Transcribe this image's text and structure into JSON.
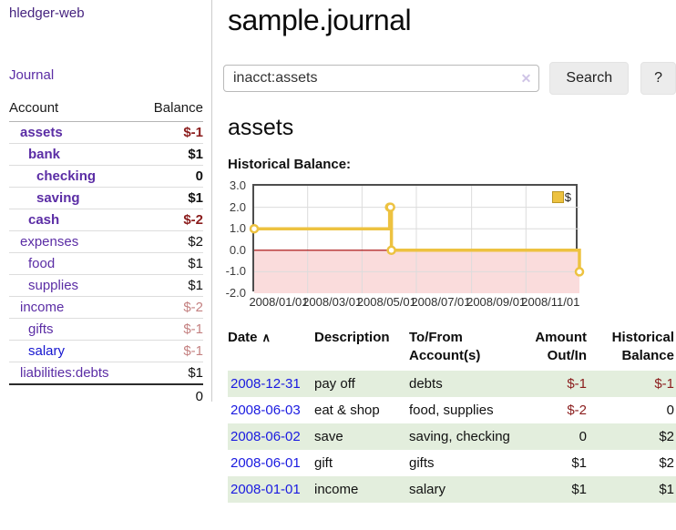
{
  "palette": {
    "link_purple": "#5b2da5",
    "link_purple_dark": "#46237f",
    "link_blue": "#1515cf",
    "date_blue": "#1a1ae0",
    "negative": "#8b1d1d",
    "negative_faint": "#c48181",
    "row_stripe": "#e3eedd",
    "chart_line": "#edc240",
    "chart_negative_fill": "#fadcdc",
    "chart_zero_line": "#a40000",
    "chart_grid": "#dcdcdc"
  },
  "sidebar": {
    "app_title": "hledger-web",
    "journal_link": "Journal",
    "accounts": {
      "account_header": "Account",
      "balance_header": "Balance",
      "rows": [
        {
          "name": "assets",
          "balance": "$-1",
          "level": 1,
          "bold": true,
          "name_color": "purple",
          "balance_color": "negative"
        },
        {
          "name": "bank",
          "balance": "$1",
          "level": 2,
          "bold": true,
          "name_color": "purple",
          "balance_color": "normal"
        },
        {
          "name": "checking",
          "balance": "0",
          "level": 3,
          "bold": true,
          "name_color": "purple",
          "balance_color": "normal"
        },
        {
          "name": "saving",
          "balance": "$1",
          "level": 3,
          "bold": true,
          "name_color": "purple",
          "balance_color": "normal"
        },
        {
          "name": "cash",
          "balance": "$-2",
          "level": 2,
          "bold": true,
          "name_color": "purple",
          "balance_color": "negative"
        },
        {
          "name": "expenses",
          "balance": "$2",
          "level": 1,
          "bold": false,
          "name_color": "purple",
          "balance_color": "normal"
        },
        {
          "name": "food",
          "balance": "$1",
          "level": 2,
          "bold": false,
          "name_color": "purple",
          "balance_color": "normal"
        },
        {
          "name": "supplies",
          "balance": "$1",
          "level": 2,
          "bold": false,
          "name_color": "purple",
          "balance_color": "normal"
        },
        {
          "name": "income",
          "balance": "$-2",
          "level": 1,
          "bold": false,
          "name_color": "purple",
          "balance_color": "negative_faint"
        },
        {
          "name": "gifts",
          "balance": "$-1",
          "level": 2,
          "bold": false,
          "name_color": "purple",
          "balance_color": "negative_faint"
        },
        {
          "name": "salary",
          "balance": "$-1",
          "level": 2,
          "bold": false,
          "name_color": "blue",
          "balance_color": "negative_faint"
        },
        {
          "name": "liabilities:debts",
          "balance": "$1",
          "level": 1,
          "bold": false,
          "name_color": "purple",
          "balance_color": "normal"
        }
      ],
      "total": "0"
    }
  },
  "main": {
    "title": "sample.journal",
    "search": {
      "value": "inacct:assets",
      "clear_icon": "✕",
      "search_button": "Search",
      "help_button": "?"
    },
    "account_heading": "assets",
    "section_label": "Historical Balance:"
  },
  "chart_data": {
    "type": "line",
    "step": true,
    "title": "Historical Balance",
    "legend": [
      {
        "name": "$",
        "color": "#edc240"
      }
    ],
    "legend_position": "top-right",
    "series": [
      {
        "name": "$",
        "points": [
          [
            "2008-01-01",
            1
          ],
          [
            "2008-06-01",
            2
          ],
          [
            "2008-06-02",
            2
          ],
          [
            "2008-06-03",
            0
          ],
          [
            "2008-12-31",
            -1
          ]
        ]
      }
    ],
    "x_ticks": [
      "2008/01/01",
      "2008/03/01",
      "2008/05/01",
      "2008/07/01",
      "2008/09/01",
      "2008/11/01"
    ],
    "y_ticks": [
      "3.0",
      "2.0",
      "1.0",
      "0.0",
      "-1.0",
      "-2.0"
    ],
    "ylim": [
      -2,
      3
    ],
    "x_range_days": 365,
    "grid": true,
    "negative_region_shaded": true
  },
  "register": {
    "headers": {
      "date": "Date",
      "description": "Description",
      "accounts": "To/From Account(s)",
      "amount": "Amount Out/In",
      "balance": "Historical Balance"
    },
    "sort_icon": "∧",
    "rows": [
      {
        "date": "2008-12-31",
        "description": "pay off",
        "accounts": "debts",
        "amount": "$-1",
        "balance": "$-1",
        "amount_negative": true,
        "balance_negative": true
      },
      {
        "date": "2008-06-03",
        "description": "eat & shop",
        "accounts": "food, supplies",
        "amount": "$-2",
        "balance": "0",
        "amount_negative": true,
        "balance_negative": false
      },
      {
        "date": "2008-06-02",
        "description": "save",
        "accounts": "saving, checking",
        "amount": "0",
        "balance": "$2",
        "amount_negative": false,
        "balance_negative": false
      },
      {
        "date": "2008-06-01",
        "description": "gift",
        "accounts": "gifts",
        "amount": "$1",
        "balance": "$2",
        "amount_negative": false,
        "balance_negative": false
      },
      {
        "date": "2008-01-01",
        "description": "income",
        "accounts": "salary",
        "amount": "$1",
        "balance": "$1",
        "amount_negative": false,
        "balance_negative": false
      }
    ]
  }
}
